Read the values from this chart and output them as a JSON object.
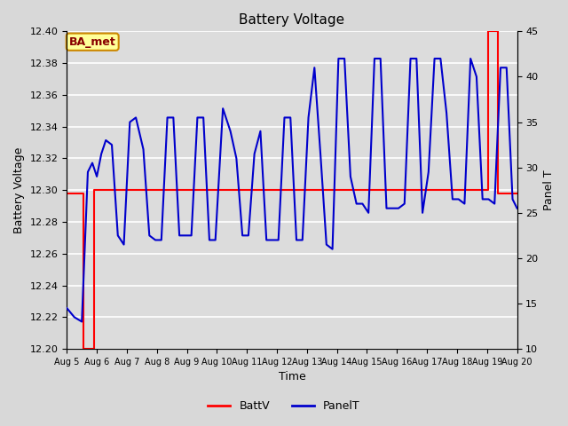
{
  "title": "Battery Voltage",
  "xlabel": "Time",
  "ylabel_left": "Battery Voltage",
  "ylabel_right": "Panel T",
  "ylim_left": [
    12.2,
    12.4
  ],
  "ylim_right": [
    10,
    45
  ],
  "xlim": [
    0,
    15
  ],
  "x_tick_labels": [
    "Aug 5",
    "Aug 6",
    "Aug 7",
    "Aug 8",
    "Aug 9",
    "Aug 10",
    "Aug 11",
    "Aug 12",
    "Aug 13",
    "Aug 14",
    "Aug 15",
    "Aug 16",
    "Aug 17",
    "Aug 18",
    "Aug 19",
    "Aug 20"
  ],
  "background_color": "#dcdcdc",
  "grid_color": "#ffffff",
  "battv_color": "#ff0000",
  "panelt_color": "#0000cc",
  "annotation_text": "BA_met",
  "annotation_bg": "#ffff99",
  "annotation_border": "#cc8800",
  "battv_x": [
    0,
    0.55,
    0.55,
    0.9,
    0.9,
    14.05,
    14.05,
    14.35,
    14.35,
    15.0
  ],
  "battv_y": [
    12.298,
    12.298,
    12.2,
    12.2,
    12.3,
    12.3,
    12.4,
    12.4,
    12.298,
    12.298
  ],
  "panelt_x": [
    0.0,
    0.25,
    0.5,
    0.7,
    0.85,
    1.0,
    1.15,
    1.3,
    1.5,
    1.7,
    1.9,
    2.1,
    2.3,
    2.55,
    2.75,
    2.95,
    3.15,
    3.35,
    3.55,
    3.75,
    3.95,
    4.15,
    4.35,
    4.55,
    4.75,
    4.95,
    5.2,
    5.45,
    5.65,
    5.85,
    6.05,
    6.25,
    6.45,
    6.65,
    6.85,
    7.05,
    7.25,
    7.45,
    7.65,
    7.85,
    8.05,
    8.25,
    8.45,
    8.65,
    8.85,
    9.05,
    9.25,
    9.45,
    9.65,
    9.85,
    10.05,
    10.25,
    10.45,
    10.65,
    10.85,
    11.05,
    11.25,
    11.45,
    11.65,
    11.85,
    12.05,
    12.25,
    12.45,
    12.65,
    12.85,
    13.05,
    13.25,
    13.45,
    13.65,
    13.85,
    14.05,
    14.25,
    14.45,
    14.65,
    14.85,
    15.0
  ],
  "panelt_y": [
    14.5,
    13.5,
    13.0,
    29.5,
    30.5,
    29.0,
    31.5,
    33.0,
    32.5,
    22.5,
    21.5,
    35.0,
    35.5,
    32.0,
    22.5,
    22.0,
    22.0,
    35.5,
    35.5,
    22.5,
    22.5,
    22.5,
    35.5,
    35.5,
    22.0,
    22.0,
    36.5,
    34.0,
    31.0,
    22.5,
    22.5,
    31.5,
    34.0,
    22.0,
    22.0,
    22.0,
    35.5,
    35.5,
    22.0,
    22.0,
    35.5,
    41.0,
    31.5,
    21.5,
    21.0,
    42.0,
    42.0,
    29.0,
    26.0,
    26.0,
    25.0,
    42.0,
    42.0,
    25.5,
    25.5,
    25.5,
    26.0,
    42.0,
    42.0,
    25.0,
    29.5,
    42.0,
    42.0,
    36.0,
    26.5,
    26.5,
    26.0,
    42.0,
    40.0,
    26.5,
    26.5,
    26.0,
    41.0,
    41.0,
    26.5,
    25.5
  ]
}
